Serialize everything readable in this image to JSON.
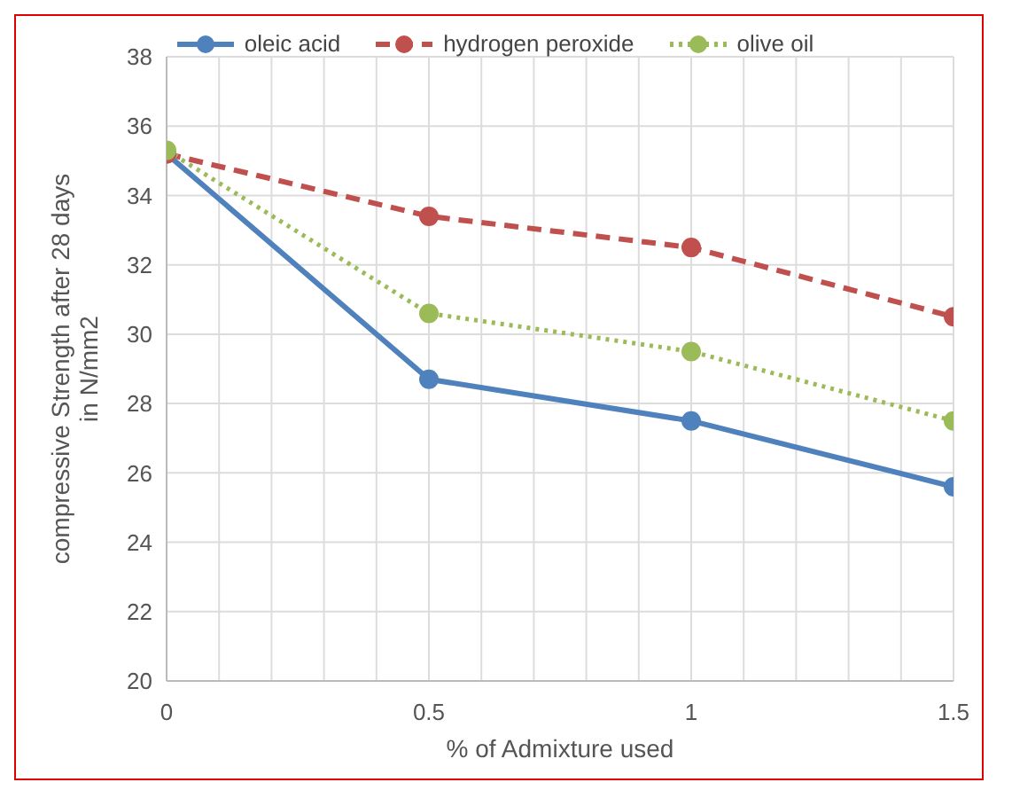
{
  "chart_data": {
    "type": "line",
    "xlabel": "% of Admixture used",
    "ylabel": "compressive Strength after 28 days in N/mm2",
    "x": [
      0,
      0.5,
      1,
      1.5
    ],
    "series": [
      {
        "name": "oleic acid",
        "color": "#4f81bd",
        "line_style": "solid",
        "values": [
          35.2,
          28.7,
          27.5,
          25.6
        ]
      },
      {
        "name": "hydrogen peroxide",
        "color": "#c0504d",
        "line_style": "dashed",
        "values": [
          35.2,
          33.4,
          32.5,
          30.5
        ]
      },
      {
        "name": "olive oil",
        "color": "#9bbb59",
        "line_style": "dotted",
        "values": [
          35.3,
          30.6,
          29.5,
          27.5
        ]
      }
    ],
    "xlim": [
      0,
      1.5
    ],
    "xticks": [
      0,
      {
        "value": 0.1,
        "label": null
      },
      {
        "value": 0.2,
        "label": null
      },
      {
        "value": 0.3,
        "label": null
      },
      {
        "value": 0.4,
        "label": null
      },
      0.5,
      {
        "value": 0.6,
        "label": null
      },
      {
        "value": 0.7,
        "label": null
      },
      {
        "value": 0.8,
        "label": null
      },
      {
        "value": 0.9,
        "label": null
      },
      1,
      {
        "value": 1.1,
        "label": null
      },
      {
        "value": 1.2,
        "label": null
      },
      {
        "value": 1.3,
        "label": null
      },
      {
        "value": 1.4,
        "label": null
      },
      1.5
    ],
    "ylim": [
      20,
      38
    ],
    "yticks": [
      20,
      22,
      24,
      26,
      28,
      30,
      32,
      34,
      36,
      38
    ],
    "grid": true,
    "legend": "top",
    "marker": "circle"
  }
}
